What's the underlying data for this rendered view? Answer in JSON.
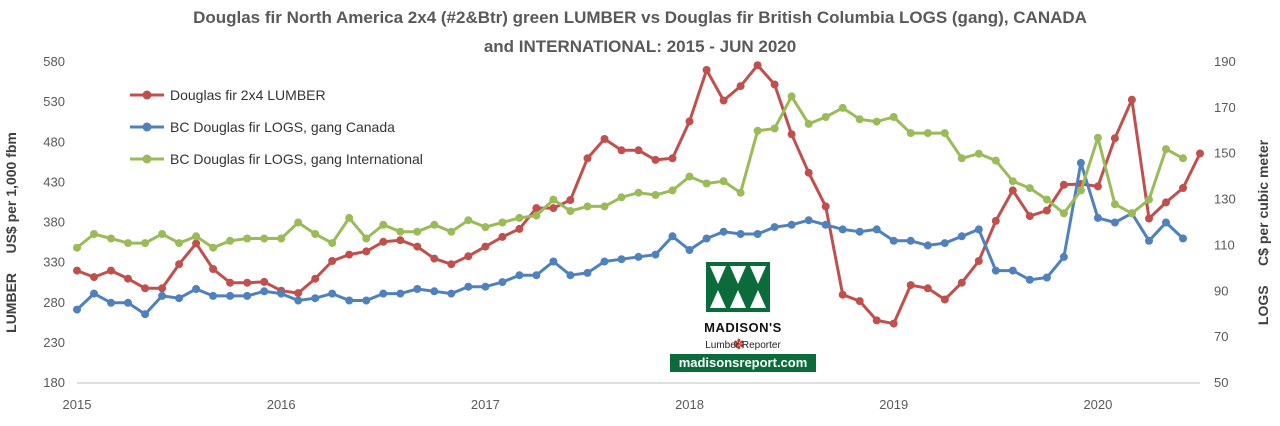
{
  "title_lines": [
    "Douglas fir North America 2x4 (#2&Btr) green LUMBER vs Douglas fir British Columbia LOGS (gang), CANADA",
    "and INTERNATIONAL: 2015 - JUN 2020"
  ],
  "logo": {
    "name": "MADISON'S",
    "sub": "Lumber Reporter",
    "url": "madisonsreport.com"
  },
  "chart_data": {
    "type": "line",
    "title": "Douglas fir North America 2x4 (#2&Btr) green LUMBER vs Douglas fir British Columbia LOGS (gang), CANADA and INTERNATIONAL: 2015 - JUN 2020",
    "ylabel_left": "LUMBER     US$ per 1,000 fbm",
    "ylabel_right": "LOGS     C$ per cubic meter",
    "x_ticks": [
      "2015",
      "2016",
      "2017",
      "2018",
      "2019",
      "2020"
    ],
    "xlim": [
      2015,
      2020.5
    ],
    "ylim_left": [
      180,
      580
    ],
    "yticks_left": [
      "180",
      "230",
      "280",
      "330",
      "380",
      "430",
      "480",
      "530",
      "580"
    ],
    "ylim_right": [
      50,
      190
    ],
    "yticks_right": [
      "50",
      "70",
      "90",
      "110",
      "130",
      "150",
      "170",
      "190"
    ],
    "legend_placement": "top-left",
    "grid": false,
    "series": [
      {
        "name": "Douglas fir 2x4 LUMBER",
        "axis": "left",
        "color": "#c0504d",
        "values": [
          320,
          312,
          320,
          310,
          298,
          298,
          328,
          354,
          322,
          305,
          305,
          306,
          295,
          292,
          310,
          332,
          340,
          344,
          356,
          358,
          350,
          335,
          328,
          338,
          350,
          362,
          372,
          398,
          398,
          408,
          460,
          484,
          470,
          470,
          458,
          460,
          506,
          570,
          532,
          550,
          576,
          552,
          490,
          442,
          400,
          290,
          282,
          258,
          254,
          302,
          298,
          284,
          305,
          332,
          382,
          420,
          388,
          395,
          427,
          428,
          425,
          485,
          533,
          385,
          405,
          423,
          466
        ]
      },
      {
        "name": "BC Douglas fir LOGS, gang Canada",
        "axis": "right",
        "color": "#4f81bd",
        "values": [
          82,
          89,
          85,
          85,
          80,
          88,
          87,
          91,
          88,
          88,
          88,
          90,
          89,
          86,
          87,
          89,
          86,
          86,
          89,
          89,
          91,
          90,
          89,
          92,
          92,
          94,
          97,
          97,
          103,
          97,
          98,
          103,
          104,
          105,
          106,
          114,
          108,
          113,
          116,
          115,
          115,
          118,
          119,
          121,
          119,
          117,
          116,
          117,
          112,
          112,
          110,
          111,
          114,
          117,
          99,
          99,
          95,
          96,
          105,
          146,
          122,
          120,
          124,
          112,
          120,
          113
        ]
      },
      {
        "name": "BC Douglas fir LOGS, gang International",
        "axis": "right",
        "color": "#9bbb59",
        "values": [
          109,
          115,
          113,
          111,
          111,
          115,
          111,
          114,
          109,
          112,
          113,
          113,
          113,
          120,
          115,
          111,
          122,
          113,
          119,
          116,
          116,
          119,
          116,
          121,
          118,
          120,
          122,
          123,
          130,
          125,
          127,
          127,
          131,
          133,
          132,
          134,
          140,
          137,
          138,
          133,
          160,
          161,
          175,
          163,
          166,
          170,
          165,
          164,
          166,
          159,
          159,
          159,
          148,
          150,
          147,
          138,
          135,
          130,
          124,
          134,
          157,
          128,
          124,
          130,
          152,
          148
        ]
      }
    ]
  }
}
